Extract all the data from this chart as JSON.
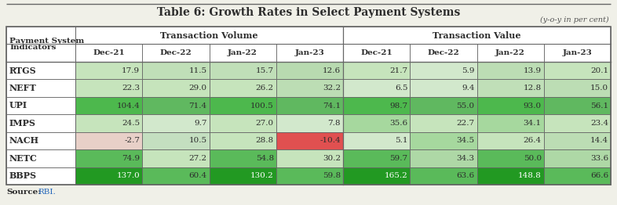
{
  "title": "Table 6: Growth Rates in Select Payment Systems",
  "subtitle": "(y-o-y in per cent)",
  "col_headers_sub": [
    "Dec-21",
    "Dec-22",
    "Jan-22",
    "Jan-23",
    "Dec-21",
    "Dec-22",
    "Jan-22",
    "Jan-23"
  ],
  "row_labels": [
    "RTGS",
    "NEFT",
    "UPI",
    "IMPS",
    "NACH",
    "NETC",
    "BBPS"
  ],
  "data": [
    [
      17.9,
      11.5,
      15.7,
      12.6,
      21.7,
      5.9,
      13.9,
      20.1
    ],
    [
      22.3,
      29.0,
      26.2,
      32.2,
      6.5,
      9.4,
      12.8,
      15.0
    ],
    [
      104.4,
      71.4,
      100.5,
      74.1,
      98.7,
      55.0,
      93.0,
      56.1
    ],
    [
      24.5,
      9.7,
      27.0,
      7.8,
      35.6,
      22.7,
      34.1,
      23.4
    ],
    [
      -2.7,
      10.5,
      28.8,
      -10.4,
      5.1,
      34.5,
      26.4,
      14.4
    ],
    [
      74.9,
      27.2,
      54.8,
      30.2,
      59.7,
      34.3,
      50.0,
      33.6
    ],
    [
      137.0,
      60.4,
      130.2,
      59.8,
      165.2,
      63.6,
      148.8,
      66.6
    ]
  ],
  "cell_colors": [
    [
      "#c6e4bc",
      "#c0dfb8",
      "#c0dfb8",
      "#b8dab0",
      "#c6e4bc",
      "#d2e8cc",
      "#bcddb4",
      "#c6e4bc"
    ],
    [
      "#c6e4bc",
      "#c6e4bc",
      "#c6e4bc",
      "#bcddb4",
      "#d2e8cc",
      "#d2e8cc",
      "#c0dfb8",
      "#bcddb4"
    ],
    [
      "#4db84d",
      "#60b860",
      "#4db84d",
      "#60b860",
      "#4db84d",
      "#60b860",
      "#4db84d",
      "#60b860"
    ],
    [
      "#c6e4bc",
      "#d2e8cc",
      "#c6e4bc",
      "#d2e8cc",
      "#a6d89e",
      "#c6e4bc",
      "#a6d89e",
      "#c6e4bc"
    ],
    [
      "#e8d0c8",
      "#c4dfc0",
      "#c6e4bc",
      "#e05050",
      "#d2e8cc",
      "#a6d89e",
      "#c6e4bc",
      "#bcddb4"
    ],
    [
      "#5aba5a",
      "#c6e4bc",
      "#5aba5a",
      "#c6e4bc",
      "#5aba5a",
      "#aed8a6",
      "#5aba5a",
      "#aed8a6"
    ],
    [
      "#229922",
      "#5aba5a",
      "#229922",
      "#5aba5a",
      "#229922",
      "#5aba5a",
      "#229922",
      "#5aba5a"
    ]
  ],
  "fig_bg": "#f0f0e8",
  "table_bg": "#ffffff",
  "border_color": "#666666",
  "title_color": "#2d2d2d",
  "text_color": "#2d2d2d",
  "source_link_color": "#2266bb"
}
